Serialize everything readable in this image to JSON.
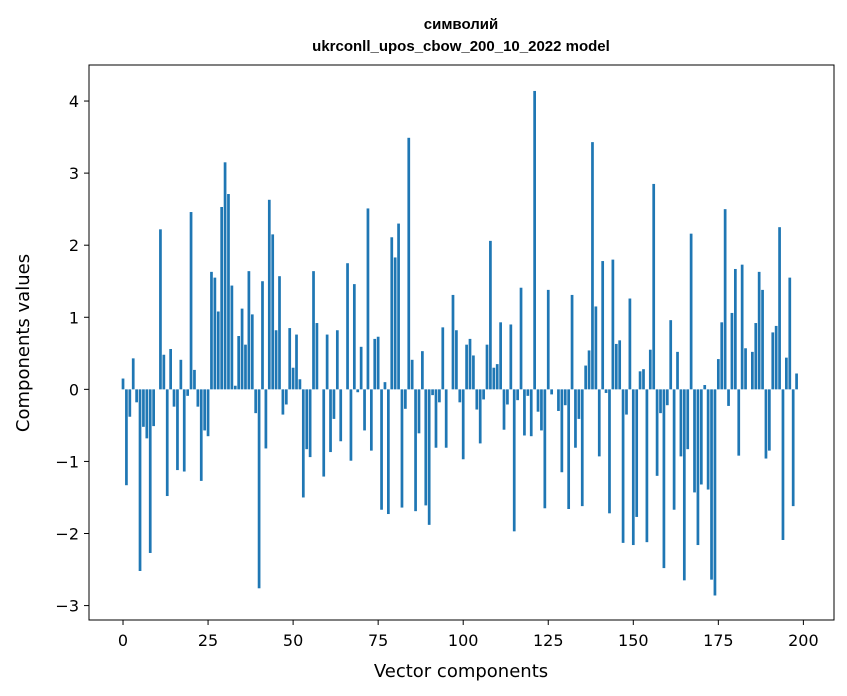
{
  "chart_data": {
    "type": "bar",
    "title": "символий\nukrconll_upos_cbow_200_10_2022 model",
    "title_lines": [
      "символий",
      "ukrconll_upos_cbow_200_10_2022 model"
    ],
    "xlabel": "Vector components",
    "ylabel": "Components values",
    "xlim": [
      -10,
      209
    ],
    "ylim": [
      -3.2,
      4.5
    ],
    "xticks": [
      0,
      25,
      50,
      75,
      100,
      125,
      150,
      175,
      200
    ],
    "yticks": [
      -3,
      -2,
      -1,
      0,
      1,
      2,
      3,
      4
    ],
    "ytick_labels": [
      "−3",
      "−2",
      "−1",
      "0",
      "1",
      "2",
      "3",
      "4"
    ],
    "grid": false,
    "bar_color": "#1f77b4",
    "values": [
      0.15,
      -1.33,
      -0.38,
      0.43,
      -0.18,
      -2.52,
      -0.52,
      -0.68,
      -2.27,
      -0.51,
      0.0,
      2.22,
      0.48,
      -1.48,
      0.56,
      -0.24,
      -1.12,
      0.41,
      -1.14,
      -0.09,
      2.46,
      0.27,
      -0.24,
      -1.27,
      -0.57,
      -0.65,
      1.63,
      1.55,
      1.08,
      2.53,
      3.15,
      2.71,
      1.44,
      0.05,
      0.74,
      1.12,
      0.62,
      1.64,
      1.04,
      -0.33,
      -2.76,
      1.5,
      -0.82,
      2.63,
      2.15,
      0.82,
      1.57,
      -0.35,
      -0.21,
      0.85,
      0.3,
      0.76,
      0.14,
      -1.5,
      -0.83,
      -0.94,
      1.64,
      0.92,
      0.0,
      -1.21,
      0.76,
      -0.87,
      -0.41,
      0.82,
      -0.72,
      0.0,
      1.75,
      -0.99,
      1.46,
      -0.04,
      0.59,
      -0.57,
      2.51,
      -0.85,
      0.7,
      0.73,
      -1.67,
      0.1,
      -1.73,
      2.11,
      1.83,
      2.3,
      -1.64,
      -0.27,
      3.49,
      0.41,
      -1.69,
      -0.61,
      0.53,
      -1.61,
      -1.88,
      -0.08,
      -0.81,
      -0.18,
      0.86,
      -0.81,
      0.0,
      1.31,
      0.82,
      -0.18,
      -0.97,
      0.62,
      0.7,
      0.47,
      -0.28,
      -0.75,
      -0.14,
      0.62,
      2.06,
      0.3,
      0.35,
      0.93,
      -0.56,
      -0.21,
      0.9,
      -1.97,
      -0.15,
      1.41,
      -0.64,
      -0.09,
      -0.65,
      4.14,
      -0.31,
      -0.57,
      -1.65,
      1.38,
      -0.07,
      0.0,
      -0.3,
      -1.15,
      -0.22,
      -1.66,
      1.31,
      -0.81,
      -0.41,
      -1.62,
      0.33,
      0.54,
      3.43,
      1.15,
      -0.93,
      1.78,
      -0.05,
      -1.72,
      1.8,
      0.63,
      0.68,
      -2.13,
      -0.35,
      1.26,
      -2.16,
      -1.77,
      0.25,
      0.28,
      -2.12,
      0.55,
      2.85,
      -1.2,
      -0.33,
      -2.48,
      -0.22,
      0.96,
      -1.67,
      0.52,
      -0.93,
      -2.65,
      -0.83,
      2.16,
      -1.43,
      -2.16,
      -1.32,
      0.06,
      -1.39,
      -2.64,
      -2.86,
      0.42,
      0.93,
      2.5,
      -0.23,
      1.06,
      1.67,
      -0.92,
      1.73,
      0.57,
      0.0,
      0.52,
      0.92,
      1.63,
      1.38,
      -0.96,
      -0.85,
      0.79,
      0.88,
      2.25,
      -2.09,
      0.44,
      1.55,
      -1.62,
      0.22,
      0.0
    ]
  }
}
